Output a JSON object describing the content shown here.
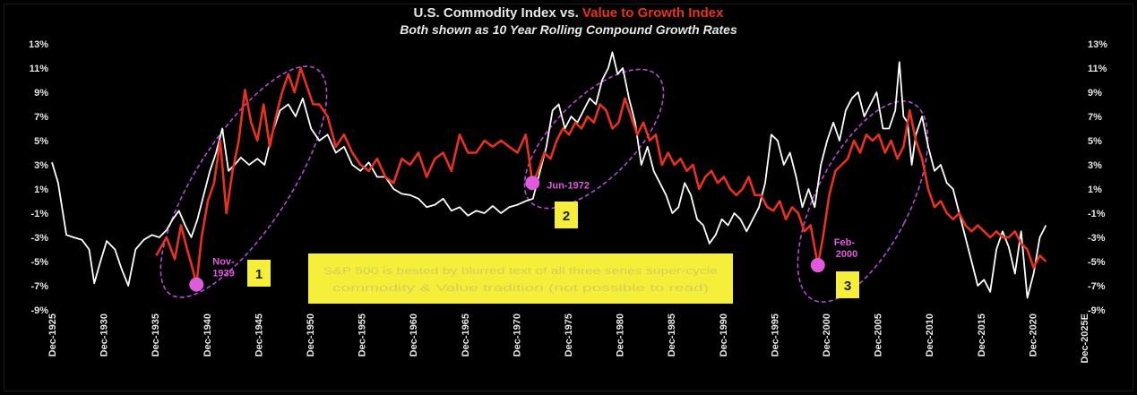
{
  "title": {
    "part1": "U.S. Commodity Index vs. ",
    "part2": "Value to Growth Index",
    "subtitle": "Both shown as 10 Year Rolling Compound Growth Rates"
  },
  "colors": {
    "background": "#000000",
    "commodity": "#ffffff",
    "value_growth": "#e8321e",
    "annotation": "#e05bdc",
    "ellipse": "#b44ad6",
    "box": "#f5ef3a"
  },
  "annotations": [
    {
      "label": "Nov-1939",
      "year": 1939.9,
      "value": -6.9
    },
    {
      "label": "Jun-1972",
      "year": 1972.45,
      "value": 1.5
    },
    {
      "label": "Feb-2000",
      "year": 2000.1,
      "value": -5.3
    }
  ],
  "box_labels": [
    "1",
    "2",
    "3"
  ],
  "note": "S&P 500 is bested by blurred text of all three series super-cycle commodity & Value tradition (not possible to read)",
  "chart_data": {
    "type": "line",
    "title": "U.S. Commodity Index vs. Value to Growth Index",
    "subtitle": "Both shown as 10 Year Rolling Compound Growth Rates",
    "ylim": [
      -9,
      13
    ],
    "xlim": [
      1925.9,
      2025.9
    ],
    "y_ticks": [
      "13%",
      "11%",
      "9%",
      "7%",
      "5%",
      "3%",
      "1%",
      "-1%",
      "-3%",
      "-5%",
      "-7%",
      "-9%"
    ],
    "x_ticks": [
      "Dec-1925",
      "Dec-1930",
      "Dec-1935",
      "Dec-1940",
      "Dec-1945",
      "Dec-1950",
      "Dec-1955",
      "Dec-1960",
      "Dec-1965",
      "Dec-1970",
      "Dec-1975",
      "Dec-1980",
      "Dec-1985",
      "Dec-1990",
      "Dec-1995",
      "Dec-2000",
      "Dec-2005",
      "Dec-2010",
      "Dec-2015",
      "Dec-2020",
      "Dec-2025E"
    ],
    "grid": false,
    "series": [
      {
        "name": "U.S. Commodity Index",
        "color": "#ffffff",
        "x": [
          1925.9,
          1926.5,
          1927.3,
          1928.0,
          1928.8,
          1929.5,
          1930.0,
          1930.6,
          1931.2,
          1932.0,
          1932.6,
          1933.3,
          1934.0,
          1934.8,
          1935.6,
          1936.3,
          1937.0,
          1937.6,
          1938.2,
          1938.8,
          1939.4,
          1940.0,
          1940.6,
          1941.2,
          1941.8,
          1942.4,
          1943.0,
          1943.6,
          1944.2,
          1945.0,
          1945.8,
          1946.5,
          1947.2,
          1948.0,
          1948.8,
          1949.5,
          1950.2,
          1951.0,
          1951.8,
          1952.6,
          1953.4,
          1954.2,
          1955.0,
          1955.8,
          1956.6,
          1957.4,
          1958.2,
          1959.0,
          1959.8,
          1960.6,
          1961.4,
          1962.2,
          1963.0,
          1963.8,
          1964.6,
          1965.4,
          1966.2,
          1967.0,
          1967.8,
          1968.6,
          1969.4,
          1970.2,
          1971.0,
          1971.8,
          1972.5,
          1973.2,
          1973.8,
          1974.4,
          1975.0,
          1975.6,
          1976.2,
          1976.8,
          1977.4,
          1978.0,
          1978.6,
          1979.2,
          1979.8,
          1980.2,
          1980.7,
          1981.2,
          1981.8,
          1982.4,
          1983.0,
          1983.6,
          1984.2,
          1984.8,
          1985.4,
          1986.0,
          1986.6,
          1987.2,
          1987.8,
          1988.4,
          1989.0,
          1989.6,
          1990.2,
          1990.8,
          1991.4,
          1992.0,
          1992.6,
          1993.2,
          1993.8,
          1994.4,
          1995.0,
          1995.6,
          1996.2,
          1996.8,
          1997.4,
          1998.0,
          1998.6,
          1999.2,
          1999.8,
          2000.4,
          2001.0,
          2001.6,
          2002.2,
          2002.8,
          2003.4,
          2004.0,
          2004.6,
          2005.2,
          2005.8,
          2006.4,
          2007.0,
          2007.6,
          2008.0,
          2008.4,
          2008.8,
          2009.2,
          2009.6,
          2010.2,
          2010.8,
          2011.4,
          2012.0,
          2012.6,
          2013.2,
          2013.8,
          2014.4,
          2015.0,
          2015.6,
          2016.2,
          2016.8,
          2017.4,
          2018.0,
          2018.6,
          2019.2,
          2019.8,
          2020.4,
          2021.0,
          2021.6,
          2022.2
        ],
        "values": [
          3.2,
          1.5,
          -2.8,
          -3.0,
          -3.2,
          -4.0,
          -6.8,
          -5.0,
          -3.3,
          -4.0,
          -5.5,
          -7.0,
          -4.0,
          -3.2,
          -2.8,
          -3.0,
          -2.4,
          -1.5,
          -0.8,
          -2.0,
          -3.0,
          -1.5,
          0.5,
          2.5,
          4.0,
          6.0,
          2.5,
          3.0,
          3.6,
          3.0,
          3.5,
          3.0,
          5.5,
          7.5,
          8.0,
          7.0,
          8.5,
          6.0,
          5.0,
          5.5,
          4.0,
          4.5,
          3.0,
          2.5,
          3.2,
          2.0,
          2.0,
          1.0,
          0.6,
          0.5,
          0.2,
          -0.5,
          -0.3,
          0.2,
          -0.8,
          -0.5,
          -1.2,
          -0.8,
          -1.0,
          -0.4,
          -1.0,
          -0.5,
          -0.3,
          0.0,
          0.2,
          2.5,
          4.5,
          7.5,
          8.0,
          6.0,
          7.0,
          6.5,
          7.5,
          8.5,
          8.0,
          10.0,
          11.0,
          12.3,
          10.5,
          11.0,
          8.5,
          6.5,
          3.0,
          4.5,
          2.5,
          1.5,
          0.5,
          -1.0,
          -0.5,
          1.5,
          0.5,
          -1.5,
          -2.0,
          -3.5,
          -2.8,
          -1.5,
          -2.0,
          -1.0,
          -1.5,
          -2.5,
          -1.5,
          -0.5,
          1.5,
          5.5,
          5.0,
          3.0,
          4.0,
          2.0,
          -0.5,
          1.0,
          -0.5,
          3.0,
          5.0,
          6.5,
          5.0,
          7.5,
          8.5,
          9.0,
          7.0,
          8.0,
          9.0,
          6.0,
          6.0,
          7.5,
          11.5,
          7.0,
          6.5,
          3.0,
          5.5,
          7.0,
          4.5,
          2.5,
          3.0,
          1.5,
          1.0,
          -1.0,
          -3.0,
          -5.0,
          -7.0,
          -6.5,
          -7.5,
          -4.0,
          -2.5,
          -3.8,
          -6.0,
          -2.5,
          -8.0,
          -6.0,
          -3.0,
          -2.0
        ]
      },
      {
        "name": "Value to Growth Index",
        "color": "#e8321e",
        "x": [
          1936.0,
          1937.0,
          1937.8,
          1938.4,
          1939.0,
          1939.5,
          1939.9,
          1940.4,
          1941.0,
          1941.6,
          1942.2,
          1942.8,
          1943.4,
          1944.0,
          1944.6,
          1945.2,
          1945.8,
          1946.4,
          1947.0,
          1947.6,
          1948.2,
          1948.8,
          1949.4,
          1950.0,
          1950.6,
          1951.2,
          1951.8,
          1952.6,
          1953.4,
          1954.2,
          1955.0,
          1955.8,
          1956.6,
          1957.4,
          1958.2,
          1959.0,
          1959.8,
          1960.6,
          1961.4,
          1962.2,
          1963.0,
          1963.8,
          1964.6,
          1965.4,
          1966.2,
          1967.0,
          1967.8,
          1968.6,
          1969.4,
          1970.2,
          1971.0,
          1971.8,
          1972.45,
          1973.0,
          1973.6,
          1974.2,
          1974.8,
          1975.4,
          1976.0,
          1976.6,
          1977.2,
          1977.8,
          1978.4,
          1979.0,
          1979.6,
          1980.2,
          1980.8,
          1981.4,
          1982.0,
          1982.6,
          1983.2,
          1983.8,
          1984.4,
          1985.0,
          1985.6,
          1986.2,
          1986.8,
          1987.4,
          1988.0,
          1988.6,
          1989.2,
          1989.8,
          1990.4,
          1991.0,
          1991.6,
          1992.2,
          1992.8,
          1993.4,
          1994.0,
          1994.6,
          1995.2,
          1995.8,
          1996.4,
          1997.0,
          1997.6,
          1998.2,
          1998.8,
          1999.4,
          2000.1,
          2000.6,
          2001.2,
          2001.8,
          2002.4,
          2003.0,
          2003.6,
          2004.2,
          2004.8,
          2005.4,
          2006.0,
          2006.6,
          2007.2,
          2007.8,
          2008.4,
          2009.0,
          2009.6,
          2010.2,
          2010.8,
          2011.4,
          2012.0,
          2012.6,
          2013.2,
          2013.8,
          2014.4,
          2015.0,
          2015.6,
          2016.2,
          2016.8,
          2017.4,
          2018.0,
          2018.6,
          2019.2,
          2019.8,
          2020.4,
          2021.0,
          2021.6,
          2022.2
        ],
        "values": [
          -4.5,
          -3.0,
          -4.8,
          -2.0,
          -4.0,
          -5.5,
          -6.9,
          -3.0,
          0.0,
          1.5,
          5.0,
          -1.0,
          2.5,
          5.0,
          9.2,
          6.5,
          5.0,
          8.0,
          4.5,
          7.0,
          9.0,
          10.5,
          9.0,
          11.0,
          9.5,
          8.0,
          8.0,
          7.0,
          4.5,
          5.5,
          4.0,
          3.0,
          2.5,
          3.5,
          2.0,
          1.5,
          3.5,
          3.0,
          4.0,
          2.0,
          3.5,
          4.0,
          2.5,
          5.5,
          4.0,
          4.0,
          5.0,
          4.5,
          5.0,
          4.5,
          4.0,
          5.5,
          1.5,
          2.5,
          4.0,
          3.5,
          5.0,
          6.0,
          5.5,
          6.5,
          6.0,
          7.0,
          6.5,
          8.0,
          7.5,
          6.0,
          6.5,
          8.5,
          7.0,
          5.5,
          6.5,
          5.0,
          5.5,
          3.0,
          4.0,
          3.0,
          3.5,
          2.5,
          3.0,
          1.0,
          2.0,
          2.5,
          1.5,
          2.0,
          1.0,
          0.5,
          1.0,
          2.0,
          0.5,
          0.5,
          -0.5,
          -0.8,
          0.0,
          -1.5,
          -0.5,
          -1.0,
          -2.5,
          -2.0,
          -5.3,
          -3.0,
          0.5,
          2.5,
          3.0,
          3.5,
          5.0,
          4.0,
          5.5,
          5.0,
          5.5,
          4.0,
          5.0,
          3.5,
          4.5,
          7.5,
          5.0,
          3.5,
          1.0,
          -0.5,
          0.0,
          -1.0,
          -1.5,
          -1.0,
          -2.0,
          -2.5,
          -2.0,
          -2.5,
          -3.0,
          -2.5,
          -3.0,
          -3.0,
          -2.5,
          -3.5,
          -4.0,
          -5.5,
          -4.5,
          -5.0
        ]
      }
    ]
  }
}
